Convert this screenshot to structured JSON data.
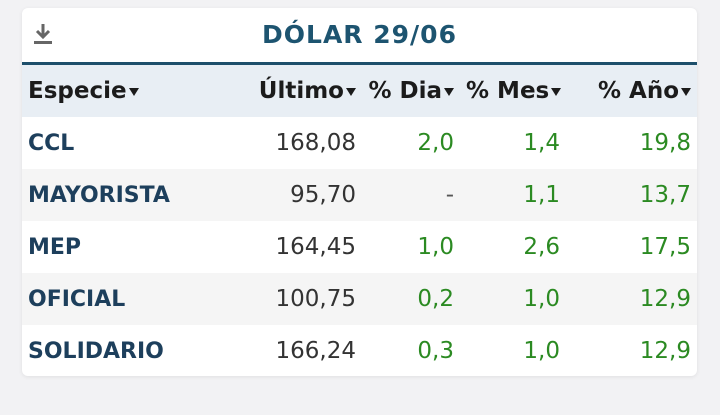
{
  "header": {
    "title": "DÓLAR 29/06"
  },
  "table": {
    "columns": [
      "Especie",
      "Último",
      "% Dia",
      "% Mes",
      "% Año"
    ],
    "rows": [
      [
        "CCL",
        "168,08",
        "2,0",
        "1,4",
        "19,8"
      ],
      [
        "MAYORISTA",
        "95,70",
        "-",
        "1,1",
        "13,7"
      ],
      [
        "MEP",
        "164,45",
        "1,0",
        "2,6",
        "17,5"
      ],
      [
        "OFICIAL",
        "100,75",
        "0,2",
        "1,0",
        "12,9"
      ],
      [
        "SOLIDARIO",
        "166,24",
        "0,3",
        "1,0",
        "12,9"
      ]
    ]
  }
}
